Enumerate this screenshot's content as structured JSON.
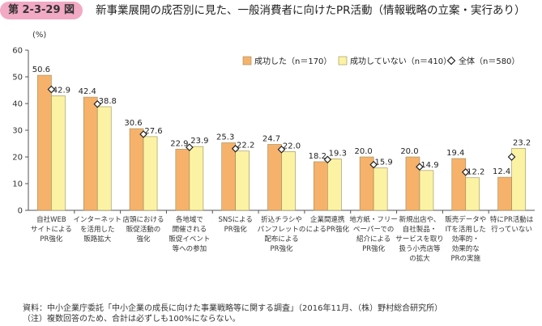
{
  "figure": {
    "number": "第 2-3-29 図",
    "title": "新事業展開の成否別に見た、一般消費者に向けたPR活動（情報戦略の立案・実行あり）"
  },
  "chart_data": {
    "type": "bar",
    "yunit": "(%)",
    "ylim": [
      0,
      60
    ],
    "yticks": [
      0,
      10,
      20,
      30,
      40,
      50,
      60
    ],
    "grid": false,
    "legend_position": "top-right",
    "categories": [
      [
        "自社WEB",
        "サイトによる",
        "PR強化"
      ],
      [
        "インターネット",
        "を活用した",
        "販路拡大"
      ],
      [
        "店頭における",
        "販促活動の",
        "強化"
      ],
      [
        "各地域で",
        "開催される",
        "販促イベント",
        "等への参加"
      ],
      [
        "SNSによる",
        "PR強化"
      ],
      [
        "折込チラシや",
        "パンフレットの",
        "配布による",
        "PR強化"
      ],
      [
        "企業間連携",
        "によるPR強化"
      ],
      [
        "地方紙・フリー",
        "ペーパーでの",
        "紹介による",
        "PR強化"
      ],
      [
        "新規出店や、",
        "自社製品・",
        "サービスを取り",
        "扱う小売店等",
        "の拡大"
      ],
      [
        "販売データや",
        "ITを活用した",
        "効率的・",
        "効果的な",
        "PRの実施"
      ],
      [
        "特にPR活動は",
        "行っていない"
      ]
    ],
    "series": [
      {
        "name": "成功した（n＝170）",
        "type": "bar",
        "color": "#f6b26b",
        "values": [
          50.6,
          42.4,
          30.6,
          22.9,
          25.3,
          24.7,
          18.2,
          20.0,
          20.0,
          19.4,
          12.4
        ]
      },
      {
        "name": "成功していない（n＝410）",
        "type": "bar",
        "color": "#fbf3a3",
        "values": [
          42.9,
          38.8,
          27.6,
          23.9,
          22.2,
          22.0,
          19.3,
          15.9,
          14.9,
          12.2,
          23.2
        ]
      },
      {
        "name": "全体（n＝580）",
        "type": "marker",
        "values": [
          45.3,
          39.8,
          28.5,
          23.6,
          23.1,
          22.8,
          19.0,
          17.1,
          16.3,
          14.3,
          20.0
        ]
      }
    ]
  },
  "footer": {
    "source": "資料：中小企業庁委託「中小企業の成長に向けた事業戦略等に関する調査」（2016年11月、（株）野村総合研究所）",
    "note": "（注）複数回答のため、合計は必ずしも100%にならない。"
  }
}
